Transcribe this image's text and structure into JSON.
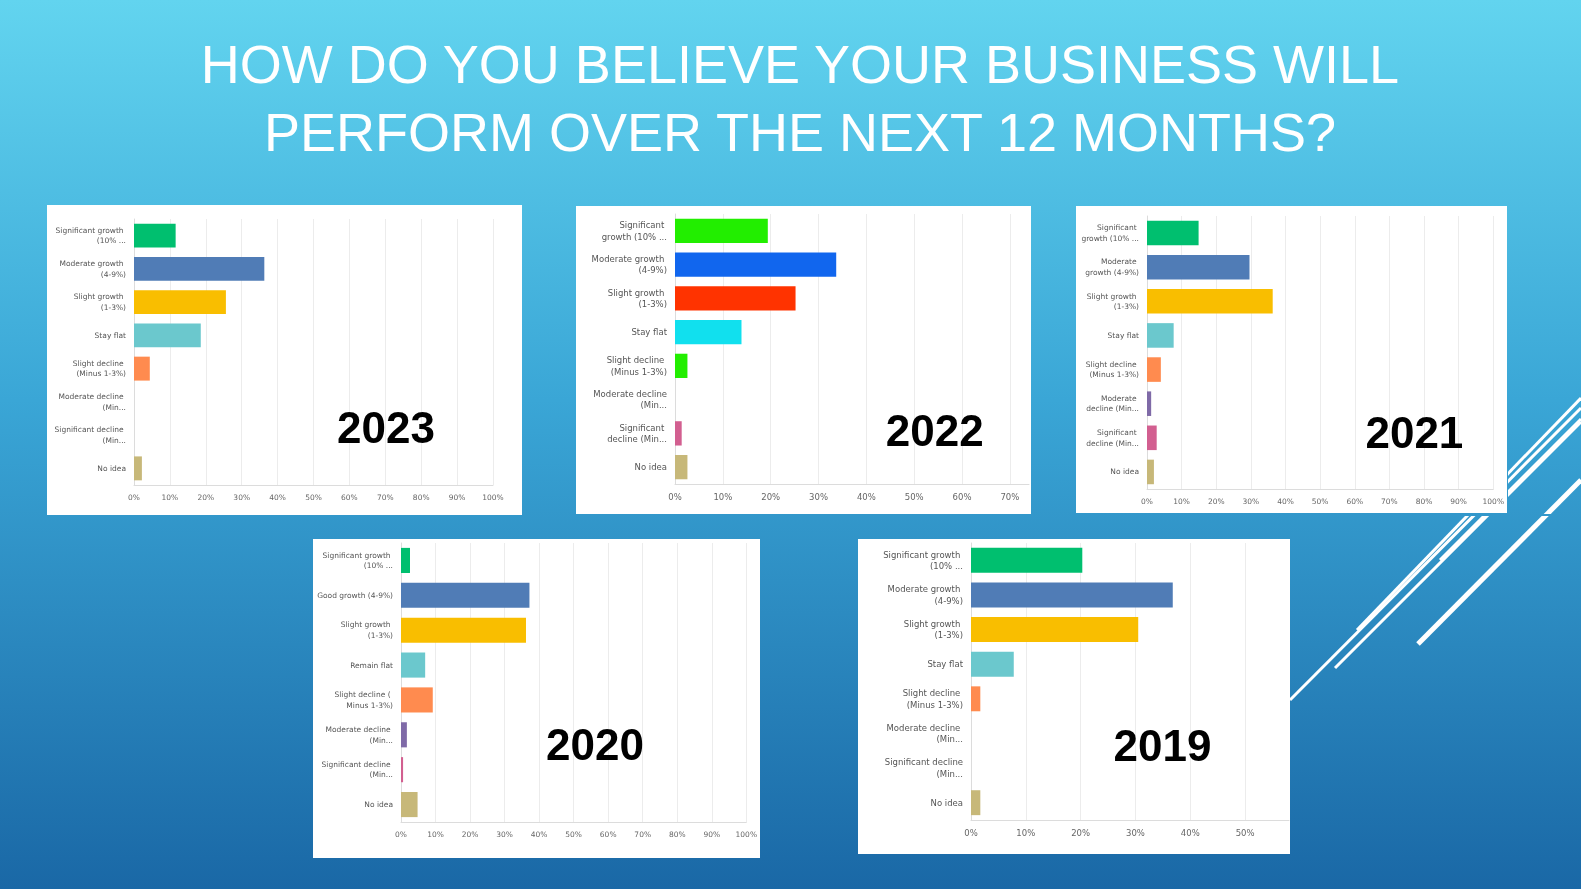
{
  "chart_data": [
    {
      "type": "bar",
      "orientation": "horizontal",
      "title": "HOW DO YOU BELIEVE YOUR BUSINESS WILL PERFORM OVER THE NEXT 12 MONTHS?",
      "annotations": [
        "2023"
      ],
      "grid": "x",
      "categories": [
        "Significant growth (10% ...",
        "Moderate growth (4-9%)",
        "Slight growth (1-3%)",
        "Stay flat",
        "Slight decline (Minus 1-3%)",
        "Moderate decline (Min...",
        "Significant decline (Min...",
        "No idea"
      ],
      "values": [
        11.6,
        36.3,
        25.6,
        18.6,
        4.4,
        0,
        0,
        2.2
      ],
      "colors": [
        "#00bf6f",
        "#507cb6",
        "#f9be00",
        "#6bc8cd",
        "#ff8b4f",
        "#7f6aa7",
        "#d25f90",
        "#c7b879"
      ],
      "xlim": [
        0,
        100
      ],
      "xticks": [
        {
          "value": 0,
          "label": "0%"
        },
        {
          "value": 10,
          "label": "10%"
        },
        {
          "value": 20,
          "label": "20%"
        },
        {
          "value": 30,
          "label": "30%"
        },
        {
          "value": 40,
          "label": "40%"
        },
        {
          "value": 50,
          "label": "50%"
        },
        {
          "value": 60,
          "label": "60%"
        },
        {
          "value": 70,
          "label": "70%"
        },
        {
          "value": 80,
          "label": "80%"
        },
        {
          "value": 90,
          "label": "90%"
        },
        {
          "value": 100,
          "label": "100%"
        }
      ]
    },
    {
      "type": "bar",
      "orientation": "horizontal",
      "annotations": [
        "2022"
      ],
      "grid": "x",
      "categories": [
        "Significant growth (10% ...",
        "Moderate growth (4-9%)",
        "Slight growth (1-3%)",
        "Stay flat",
        "Slight decline (Minus 1-3%)",
        "Moderate decline (Min...",
        "Significant decline (Min...",
        "No idea"
      ],
      "values": [
        19.4,
        33.7,
        25.2,
        13.9,
        2.6,
        0,
        1.4,
        2.6
      ],
      "colors": [
        "#22ee00",
        "#1166ee",
        "#ff3300",
        "#11e0ee",
        "#22ee00",
        "#7f6aa7",
        "#d25f90",
        "#c7b879"
      ],
      "xlim": [
        0,
        74
      ],
      "xticks": [
        {
          "value": 0,
          "label": "0%"
        },
        {
          "value": 10,
          "label": "10%"
        },
        {
          "value": 20,
          "label": "20%"
        },
        {
          "value": 30,
          "label": "30%"
        },
        {
          "value": 40,
          "label": "40%"
        },
        {
          "value": 50,
          "label": "50%"
        },
        {
          "value": 60,
          "label": "60%"
        },
        {
          "value": 70,
          "label": "70%"
        }
      ]
    },
    {
      "type": "bar",
      "orientation": "horizontal",
      "annotations": [
        "2021"
      ],
      "grid": "x",
      "categories": [
        "Significant growth (10% ...",
        "Moderate growth (4-9%)",
        "Slight growth (1-3%)",
        "Stay flat",
        "Slight decline (Minus 1-3%)",
        "Moderate decline (Min...",
        "Significant decline (Min...",
        "No idea"
      ],
      "values": [
        14.9,
        29.6,
        36.3,
        7.7,
        4.0,
        1.2,
        2.8,
        2.0
      ],
      "colors": [
        "#00bf6f",
        "#507cb6",
        "#f9be00",
        "#6bc8cd",
        "#ff8b4f",
        "#7f6aa7",
        "#d25f90",
        "#c7b879"
      ],
      "xlim": [
        0,
        100
      ],
      "xticks": [
        {
          "value": 0,
          "label": "0%"
        },
        {
          "value": 10,
          "label": "10%"
        },
        {
          "value": 20,
          "label": "20%"
        },
        {
          "value": 30,
          "label": "30%"
        },
        {
          "value": 40,
          "label": "40%"
        },
        {
          "value": 50,
          "label": "50%"
        },
        {
          "value": 60,
          "label": "60%"
        },
        {
          "value": 70,
          "label": "70%"
        },
        {
          "value": 80,
          "label": "80%"
        },
        {
          "value": 90,
          "label": "90%"
        },
        {
          "value": 100,
          "label": "100%"
        }
      ]
    },
    {
      "type": "bar",
      "orientation": "horizontal",
      "annotations": [
        "2020"
      ],
      "grid": "x",
      "categories": [
        "Significant growth (10% ...",
        "Good growth (4-9%)",
        "Slight growth (1-3%)",
        "Remain flat",
        "Slight decline ( Minus 1-3%)",
        "Moderate decline (Min...",
        "Significant decline (Min...",
        "No idea"
      ],
      "values": [
        2.6,
        37.2,
        36.2,
        7.0,
        9.2,
        1.7,
        0.6,
        4.8
      ],
      "colors": [
        "#00bf6f",
        "#507cb6",
        "#f9be00",
        "#6bc8cd",
        "#ff8b4f",
        "#7f6aa7",
        "#d25f90",
        "#c7b879"
      ],
      "xlim": [
        0,
        100
      ],
      "xticks": [
        {
          "value": 0,
          "label": "0%"
        },
        {
          "value": 10,
          "label": "10%"
        },
        {
          "value": 20,
          "label": "20%"
        },
        {
          "value": 30,
          "label": "30%"
        },
        {
          "value": 40,
          "label": "40%"
        },
        {
          "value": 50,
          "label": "50%"
        },
        {
          "value": 60,
          "label": "60%"
        },
        {
          "value": 70,
          "label": "70%"
        },
        {
          "value": 80,
          "label": "80%"
        },
        {
          "value": 90,
          "label": "90%"
        },
        {
          "value": 100,
          "label": "100%"
        }
      ]
    },
    {
      "type": "bar",
      "orientation": "horizontal",
      "annotations": [
        "2019"
      ],
      "grid": "x",
      "categories": [
        "Significant growth (10% ...",
        "Moderate growth (4-9%)",
        "Slight growth (1-3%)",
        "Stay flat",
        "Slight decline (Minus 1-3%)",
        "Moderate decline (Min...",
        "Significant decline (Min...",
        "No idea"
      ],
      "values": [
        20.3,
        36.8,
        30.5,
        7.8,
        1.7,
        0,
        0,
        1.7
      ],
      "colors": [
        "#00bf6f",
        "#507cb6",
        "#f9be00",
        "#6bc8cd",
        "#ff8b4f",
        "#7f6aa7",
        "#d25f90",
        "#c7b879"
      ],
      "xlim": [
        0,
        58
      ],
      "xticks": [
        {
          "value": 0,
          "label": "0%"
        },
        {
          "value": 10,
          "label": "10%"
        },
        {
          "value": 20,
          "label": "20%"
        },
        {
          "value": 30,
          "label": "30%"
        },
        {
          "value": 40,
          "label": "40%"
        },
        {
          "value": 50,
          "label": "50%"
        }
      ]
    }
  ]
}
